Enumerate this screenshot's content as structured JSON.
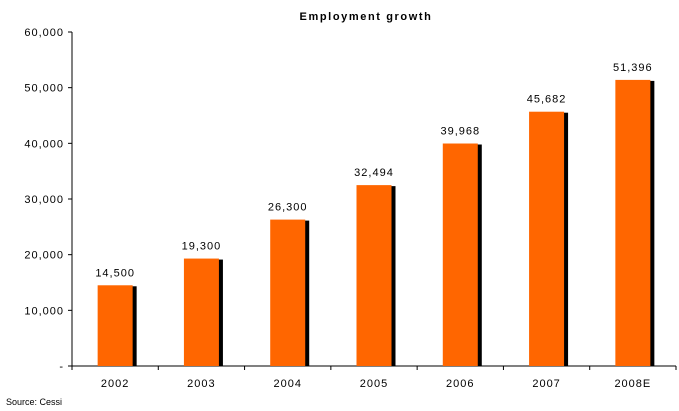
{
  "chart_data": {
    "type": "bar",
    "title": "Employment growth",
    "categories": [
      "2002",
      "2003",
      "2004",
      "2005",
      "2006",
      "2007",
      "2008E"
    ],
    "values": [
      14500,
      19300,
      26300,
      32494,
      39968,
      45682,
      51396
    ],
    "data_labels": [
      "14,500",
      "19,300",
      "26,300",
      "32,494",
      "39,968",
      "45,682",
      "51,396"
    ],
    "y_ticks": [
      0,
      10000,
      20000,
      30000,
      40000,
      50000,
      60000
    ],
    "y_tick_labels": [
      "-",
      "10,000",
      "20,000",
      "30,000",
      "40,000",
      "50,000",
      "60,000"
    ],
    "ylim": [
      0,
      60000
    ],
    "xlabel": "",
    "ylabel": "",
    "grid": false,
    "bar_color": "#ff6600",
    "shadow_color": "#000000"
  },
  "source": "Source: Cessi"
}
